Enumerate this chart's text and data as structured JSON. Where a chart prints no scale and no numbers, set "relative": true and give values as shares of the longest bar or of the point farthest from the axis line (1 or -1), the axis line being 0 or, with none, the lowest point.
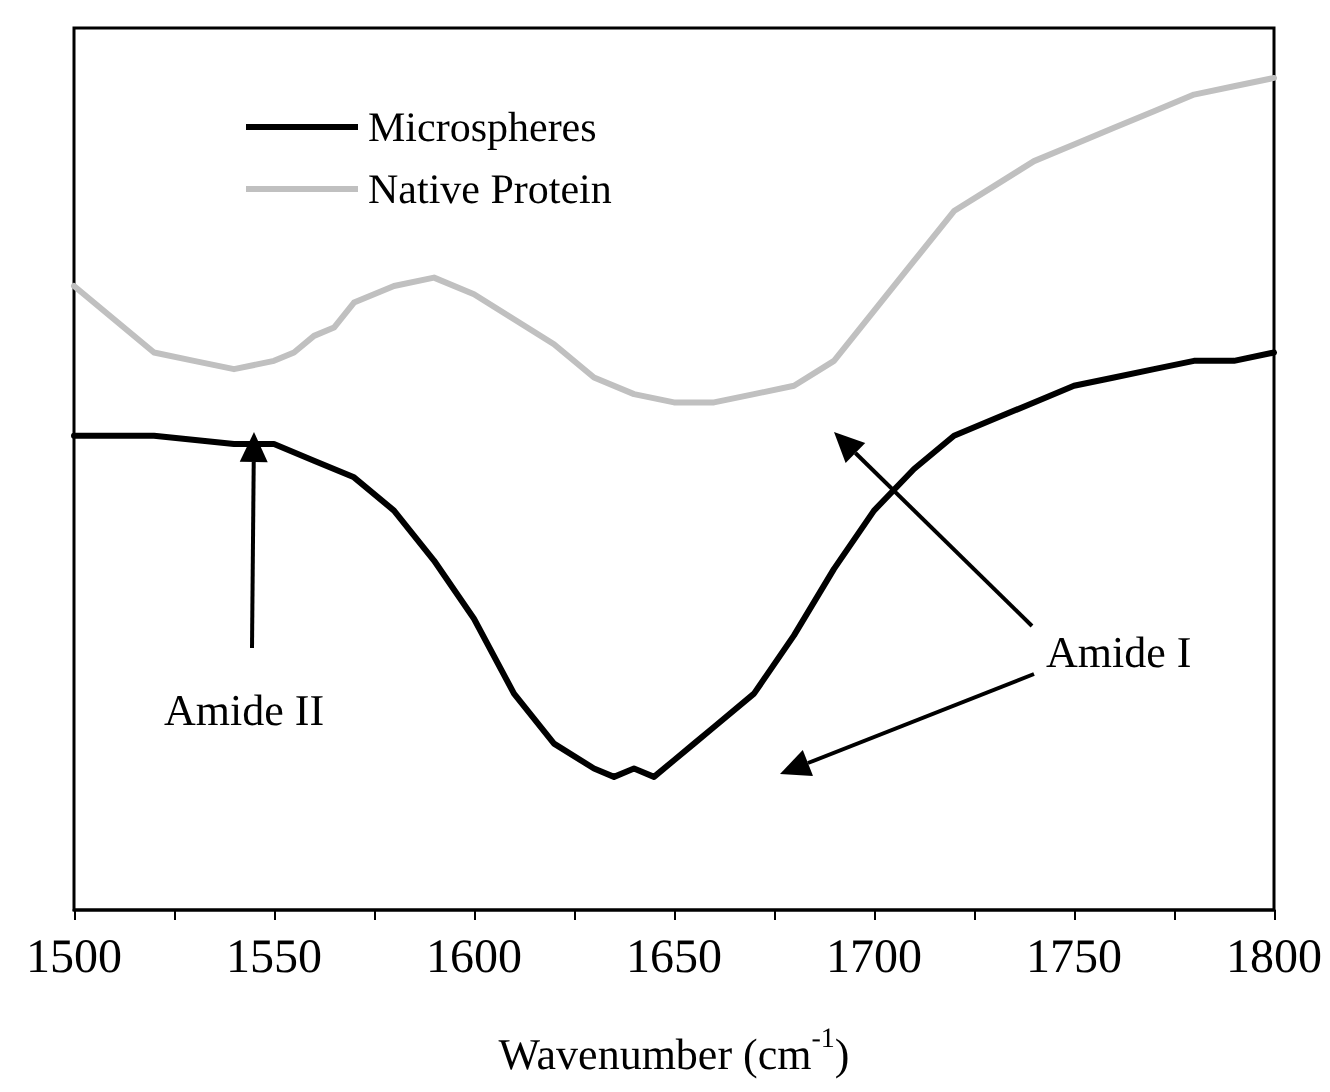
{
  "chart_data": {
    "type": "line",
    "relative": true,
    "xlabel": "Wavenumber (cm$^{-1}$)",
    "xlim": [
      1500,
      1800
    ],
    "xticks": [
      1500,
      1550,
      1600,
      1650,
      1700,
      1750,
      1800
    ],
    "grid": false,
    "legend": "top left",
    "marker": "none",
    "line_style": "solid",
    "annotations": [
      "Amide II",
      "Amide I"
    ],
    "series": [
      {
        "name": "Microspheres",
        "color": "#000000",
        "x": [
          1500,
          1520,
          1540,
          1550,
          1560,
          1570,
          1580,
          1590,
          1600,
          1610,
          1620,
          1630,
          1635,
          1640,
          1645,
          1650,
          1655,
          1660,
          1670,
          1680,
          1690,
          1700,
          1710,
          1720,
          1730,
          1740,
          1750,
          1760,
          1770,
          1780,
          1790,
          1800
        ],
        "values": [
          0.57,
          0.57,
          0.56,
          0.56,
          0.54,
          0.52,
          0.48,
          0.42,
          0.35,
          0.26,
          0.2,
          0.17,
          0.16,
          0.17,
          0.16,
          0.18,
          0.2,
          0.22,
          0.26,
          0.33,
          0.41,
          0.48,
          0.53,
          0.57,
          0.59,
          0.61,
          0.63,
          0.64,
          0.65,
          0.66,
          0.66,
          0.67
        ]
      },
      {
        "name": "Native Protein",
        "color": "#c0c0c0",
        "x": [
          1500,
          1510,
          1520,
          1530,
          1540,
          1550,
          1555,
          1560,
          1565,
          1570,
          1580,
          1590,
          1600,
          1610,
          1620,
          1630,
          1640,
          1650,
          1660,
          1670,
          1680,
          1690,
          1700,
          1710,
          1720,
          1730,
          1740,
          1750,
          1760,
          1770,
          1780,
          1790,
          1800
        ],
        "values": [
          0.75,
          0.71,
          0.67,
          0.66,
          0.65,
          0.66,
          0.67,
          0.69,
          0.7,
          0.73,
          0.75,
          0.76,
          0.74,
          0.71,
          0.68,
          0.64,
          0.62,
          0.61,
          0.61,
          0.62,
          0.63,
          0.66,
          0.72,
          0.78,
          0.84,
          0.87,
          0.9,
          0.92,
          0.94,
          0.96,
          0.98,
          0.99,
          1
        ]
      }
    ]
  }
}
